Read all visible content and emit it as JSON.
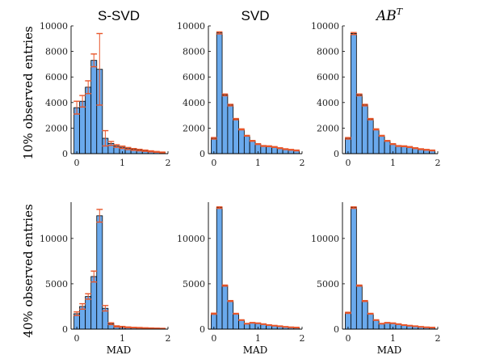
{
  "figure": {
    "col_titles": [
      "S-SVD",
      "SVD",
      "AB",
      "T"
    ],
    "row_labels": [
      "10% observed entries",
      "40% observed entries"
    ],
    "xlabel": "MAD"
  },
  "colors": {
    "bar": "#6aa9ec",
    "bar_edge": "#000000",
    "error": "#e8562a",
    "axis": "#000000"
  },
  "chart_data": [
    {
      "type": "bar",
      "title": "S-SVD",
      "row_label": "10% observed entries",
      "xlim": [
        -0.125,
        2.0
      ],
      "ylim": [
        0,
        10000
      ],
      "xticks": [
        0,
        1,
        2
      ],
      "yticks": [
        0,
        2000,
        4000,
        6000,
        8000,
        10000
      ],
      "bin_centers": [
        0.0,
        0.125,
        0.25,
        0.375,
        0.5,
        0.625,
        0.75,
        0.875,
        1.0,
        1.125,
        1.25,
        1.375,
        1.5,
        1.625,
        1.75,
        1.875
      ],
      "values": [
        3600,
        4100,
        5200,
        7300,
        6600,
        1200,
        800,
        600,
        500,
        400,
        330,
        280,
        230,
        180,
        140,
        100
      ],
      "errors": [
        500,
        450,
        500,
        500,
        2800,
        600,
        150,
        100,
        90,
        80,
        70,
        60,
        50,
        40,
        30,
        25
      ]
    },
    {
      "type": "bar",
      "title": "SVD",
      "row_label": "10% observed entries",
      "xlim": [
        -0.125,
        2.0
      ],
      "ylim": [
        0,
        10000
      ],
      "xticks": [
        0,
        1,
        2
      ],
      "yticks": [
        0,
        2000,
        4000,
        6000,
        8000,
        10000
      ],
      "bin_centers": [
        0.0,
        0.125,
        0.25,
        0.375,
        0.5,
        0.625,
        0.75,
        0.875,
        1.0,
        1.125,
        1.25,
        1.375,
        1.5,
        1.625,
        1.75,
        1.875
      ],
      "values": [
        1200,
        9450,
        4600,
        3800,
        2700,
        1900,
        1400,
        1000,
        750,
        600,
        580,
        520,
        430,
        350,
        300,
        250
      ],
      "errors": [
        60,
        80,
        70,
        60,
        50,
        40,
        30,
        30,
        30,
        30,
        30,
        30,
        30,
        30,
        30,
        30
      ]
    },
    {
      "type": "bar",
      "title": "AB^T",
      "row_label": "10% observed entries",
      "xlim": [
        -0.125,
        2.0
      ],
      "ylim": [
        0,
        10000
      ],
      "xticks": [
        0,
        1,
        2
      ],
      "yticks": [
        0,
        2000,
        4000,
        6000,
        8000,
        10000
      ],
      "bin_centers": [
        0.0,
        0.125,
        0.25,
        0.375,
        0.5,
        0.625,
        0.75,
        0.875,
        1.0,
        1.125,
        1.25,
        1.375,
        1.5,
        1.625,
        1.75,
        1.875
      ],
      "values": [
        1200,
        9400,
        4600,
        3800,
        2700,
        1900,
        1400,
        1000,
        750,
        600,
        580,
        520,
        430,
        350,
        300,
        250
      ],
      "errors": [
        60,
        80,
        70,
        60,
        50,
        40,
        30,
        30,
        30,
        30,
        30,
        30,
        30,
        30,
        30,
        30
      ]
    },
    {
      "type": "bar",
      "title": "",
      "row_label": "40% observed entries",
      "xlim": [
        -0.125,
        2.0
      ],
      "ylim": [
        0,
        14000
      ],
      "xticks": [
        0,
        1,
        2
      ],
      "yticks": [
        0,
        5000,
        10000
      ],
      "bin_centers": [
        0.0,
        0.125,
        0.25,
        0.375,
        0.5,
        0.625,
        0.75,
        0.875,
        1.0,
        1.125,
        1.25,
        1.375,
        1.5,
        1.625,
        1.75,
        1.875
      ],
      "values": [
        1700,
        2500,
        3600,
        5800,
        12500,
        2300,
        600,
        300,
        250,
        200,
        170,
        150,
        120,
        100,
        80,
        60
      ],
      "errors": [
        200,
        300,
        300,
        600,
        700,
        300,
        100,
        60,
        50,
        40,
        30,
        30,
        30,
        30,
        30,
        30
      ]
    },
    {
      "type": "bar",
      "title": "",
      "row_label": "40% observed entries",
      "xlim": [
        -0.125,
        2.0
      ],
      "ylim": [
        0,
        14000
      ],
      "xticks": [
        0,
        1,
        2
      ],
      "yticks": [
        0,
        5000,
        10000
      ],
      "bin_centers": [
        0.0,
        0.125,
        0.25,
        0.375,
        0.5,
        0.625,
        0.75,
        0.875,
        1.0,
        1.125,
        1.25,
        1.375,
        1.5,
        1.625,
        1.75,
        1.875
      ],
      "values": [
        1700,
        13400,
        4800,
        3100,
        1700,
        1000,
        600,
        700,
        650,
        550,
        450,
        380,
        320,
        250,
        200,
        170
      ],
      "errors": [
        60,
        80,
        60,
        50,
        40,
        30,
        30,
        30,
        30,
        30,
        30,
        30,
        30,
        30,
        30,
        30
      ]
    },
    {
      "type": "bar",
      "title": "",
      "row_label": "40% observed entries",
      "xlim": [
        -0.125,
        2.0
      ],
      "ylim": [
        0,
        14000
      ],
      "xticks": [
        0,
        1,
        2
      ],
      "yticks": [
        0,
        5000,
        10000
      ],
      "bin_centers": [
        0.0,
        0.125,
        0.25,
        0.375,
        0.5,
        0.625,
        0.75,
        0.875,
        1.0,
        1.125,
        1.25,
        1.375,
        1.5,
        1.625,
        1.75,
        1.875
      ],
      "values": [
        1800,
        13400,
        4800,
        3100,
        1700,
        1000,
        600,
        700,
        650,
        550,
        450,
        380,
        320,
        250,
        200,
        170
      ],
      "errors": [
        60,
        80,
        60,
        50,
        40,
        30,
        30,
        30,
        30,
        30,
        30,
        30,
        30,
        30,
        30,
        30
      ]
    }
  ]
}
